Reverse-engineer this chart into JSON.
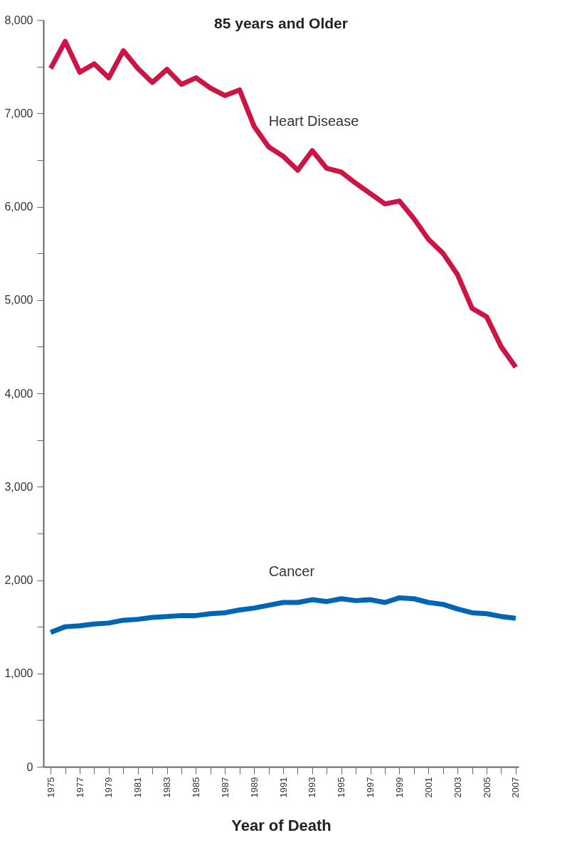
{
  "chart_data": {
    "type": "line",
    "title": "85 years and Older",
    "xlabel": "Year of Death",
    "x": [
      1975,
      1976,
      1977,
      1978,
      1979,
      1980,
      1981,
      1982,
      1983,
      1984,
      1985,
      1986,
      1987,
      1988,
      1989,
      1990,
      1991,
      1992,
      1993,
      1994,
      1995,
      1996,
      1997,
      1998,
      1999,
      2000,
      2001,
      2002,
      2003,
      2004,
      2005,
      2006,
      2007
    ],
    "xlim": [
      1974.5,
      2007.2
    ],
    "xticks": [
      1975,
      {
        "value": 1976,
        "label": null
      },
      1977,
      {
        "value": 1978,
        "label": null
      },
      1979,
      {
        "value": 1980,
        "label": null
      },
      1981,
      {
        "value": 1982,
        "label": null
      },
      1983,
      {
        "value": 1984,
        "label": null
      },
      1985,
      {
        "value": 1986,
        "label": null
      },
      1987,
      {
        "value": 1988,
        "label": null
      },
      1989,
      {
        "value": 1990,
        "label": null
      },
      1991,
      {
        "value": 1992,
        "label": null
      },
      1993,
      {
        "value": 1994,
        "label": null
      },
      1995,
      {
        "value": 1996,
        "label": null
      },
      1997,
      {
        "value": 1998,
        "label": null
      },
      1999,
      {
        "value": 2000,
        "label": null
      },
      2001,
      {
        "value": 2002,
        "label": null
      },
      2003,
      {
        "value": 2004,
        "label": null
      },
      2005,
      {
        "value": 2006,
        "label": null
      },
      2007
    ],
    "ylim": [
      0,
      8000
    ],
    "yticks": [
      {
        "value": 0,
        "label": "0"
      },
      {
        "value": 500,
        "label": null
      },
      {
        "value": 1000,
        "label": "1,000"
      },
      {
        "value": 1500,
        "label": null
      },
      {
        "value": 2000,
        "label": "2,000"
      },
      {
        "value": 2500,
        "label": null
      },
      {
        "value": 3000,
        "label": "3,000"
      },
      {
        "value": 3500,
        "label": null
      },
      {
        "value": 4000,
        "label": "4,000"
      },
      {
        "value": 4500,
        "label": null
      },
      {
        "value": 5000,
        "label": "5,000"
      },
      {
        "value": 5500,
        "label": null
      },
      {
        "value": 6000,
        "label": "6,000"
      },
      {
        "value": 6500,
        "label": null
      },
      {
        "value": 7000,
        "label": "7,000"
      },
      {
        "value": 7500,
        "label": null
      },
      {
        "value": 8000,
        "label": "8,000"
      }
    ],
    "grid": false,
    "legend": false,
    "marker": "none",
    "line_style": "solid",
    "series": [
      {
        "name": "Heart Disease",
        "color": "#cc1445",
        "values": [
          7480,
          7770,
          7440,
          7530,
          7380,
          7670,
          7480,
          7330,
          7470,
          7310,
          7380,
          7270,
          7190,
          7250,
          6860,
          6640,
          6540,
          6390,
          6600,
          6410,
          6370,
          6250,
          6140,
          6030,
          6060,
          5870,
          5650,
          5500,
          5270,
          4910,
          4820,
          4500,
          4280
        ]
      },
      {
        "name": "Cancer",
        "color": "#0066b3",
        "values": [
          1440,
          1500,
          1510,
          1530,
          1540,
          1570,
          1580,
          1600,
          1610,
          1620,
          1620,
          1640,
          1650,
          1680,
          1700,
          1730,
          1760,
          1760,
          1790,
          1770,
          1800,
          1780,
          1790,
          1760,
          1810,
          1800,
          1760,
          1740,
          1690,
          1650,
          1640,
          1610,
          1590
        ]
      }
    ]
  }
}
